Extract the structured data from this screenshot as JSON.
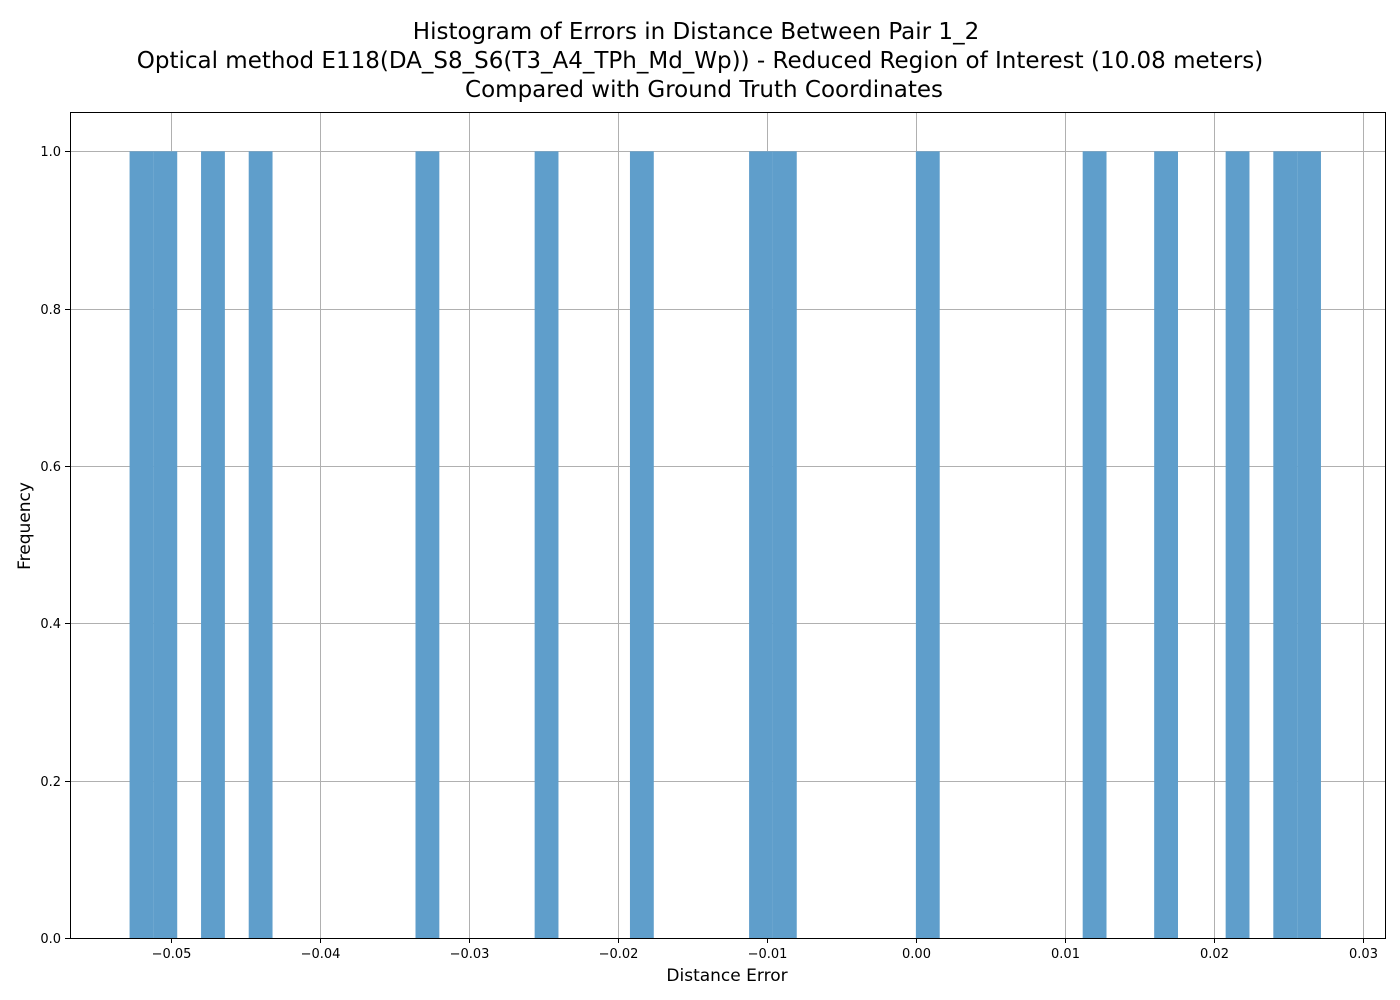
{
  "chart_data": {
    "type": "bar",
    "title_lines": [
      "Histogram of Errors in Distance Between Pair 1_2",
      "Optical method E118(DA_S8_S6(T3_A4_TPh_Md_Wp)) - Reduced Region of Interest (10.08 meters)",
      "Compared with Ground Truth Coordinates"
    ],
    "xlabel": "Distance Error",
    "ylabel": "Frequency",
    "xlim": [
      -0.0568,
      0.0315
    ],
    "ylim": [
      0,
      1.05
    ],
    "xticks": [
      -0.05,
      -0.04,
      -0.03,
      -0.02,
      -0.01,
      0.0,
      0.01,
      0.02,
      0.03
    ],
    "xtick_labels": [
      "−0.05",
      "−0.04",
      "−0.03",
      "−0.02",
      "−0.01",
      "0.00",
      "0.01",
      "0.02",
      "0.03"
    ],
    "yticks": [
      0.0,
      0.2,
      0.4,
      0.6,
      0.8,
      1.0
    ],
    "ytick_labels": [
      "0.0",
      "0.2",
      "0.4",
      "0.6",
      "0.8",
      "1.0"
    ],
    "grid": true,
    "bar_color": "#5f9ecb",
    "bins": [
      {
        "x0": -0.0528,
        "x1": -0.0512,
        "count": 1
      },
      {
        "x0": -0.0512,
        "x1": -0.0496,
        "count": 1
      },
      {
        "x0": -0.048,
        "x1": -0.0464,
        "count": 1
      },
      {
        "x0": -0.0448,
        "x1": -0.0432,
        "count": 1
      },
      {
        "x0": -0.0336,
        "x1": -0.032,
        "count": 1
      },
      {
        "x0": -0.0256,
        "x1": -0.024,
        "count": 1
      },
      {
        "x0": -0.0192,
        "x1": -0.0176,
        "count": 1
      },
      {
        "x0": -0.0112,
        "x1": -0.0096,
        "count": 1
      },
      {
        "x0": -0.0096,
        "x1": -0.008,
        "count": 1
      },
      {
        "x0": 0.0,
        "x1": 0.0016,
        "count": 1
      },
      {
        "x0": 0.0112,
        "x1": 0.0128,
        "count": 1
      },
      {
        "x0": 0.016,
        "x1": 0.0176,
        "count": 1
      },
      {
        "x0": 0.0208,
        "x1": 0.0224,
        "count": 1
      },
      {
        "x0": 0.024,
        "x1": 0.0256,
        "count": 1
      },
      {
        "x0": 0.0256,
        "x1": 0.0272,
        "count": 1
      }
    ]
  }
}
